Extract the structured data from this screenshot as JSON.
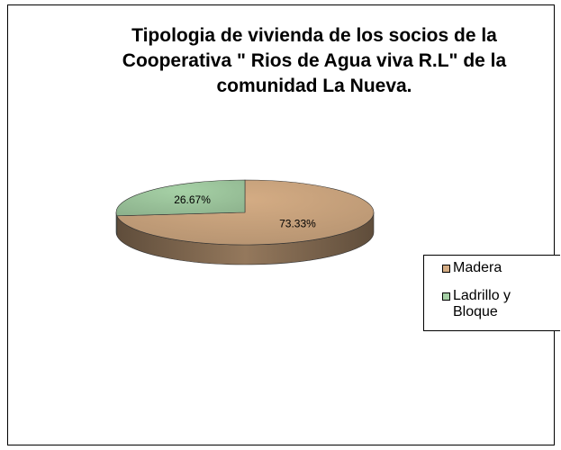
{
  "chart_data": {
    "type": "pie",
    "three_d": true,
    "title": "Tipologia de vivienda de los socios de la Cooperativa \" Rios de Agua viva R.L\" de la comunidad La Nueva.",
    "categories": [
      "Madera",
      "Ladrillo y Bloque"
    ],
    "values": [
      73.33,
      26.67
    ],
    "value_labels": [
      "73.33%",
      "26.67%"
    ],
    "colors": [
      "#d4ac84",
      "#a6d1a6"
    ],
    "legend": "right"
  }
}
